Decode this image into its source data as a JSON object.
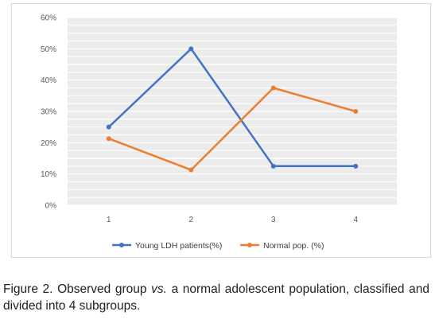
{
  "chart_data": {
    "type": "line",
    "categories": [
      "1",
      "2",
      "3",
      "4"
    ],
    "series": [
      {
        "name": "Young LDH patients(%)",
        "color": "#4472C4",
        "values": [
          25,
          50,
          12.5,
          12.5
        ]
      },
      {
        "name": "Normal pop. (%)",
        "color": "#ED7D31",
        "values": [
          21.3,
          11.3,
          37.5,
          30
        ]
      }
    ],
    "ylim": [
      0,
      60
    ],
    "yticks": [
      "0%",
      "10%",
      "20%",
      "30%",
      "40%",
      "50%",
      "60%"
    ],
    "title": "",
    "xlabel": "",
    "ylabel": "",
    "grid": true,
    "plot_background": "#ececec",
    "legend_position": "bottom"
  },
  "caption": {
    "label": "Figure 2.",
    "part1": "Observed group",
    "vs": "vs.",
    "part2": "a normal adolescent population, classified and divided into 4 subgroups."
  }
}
